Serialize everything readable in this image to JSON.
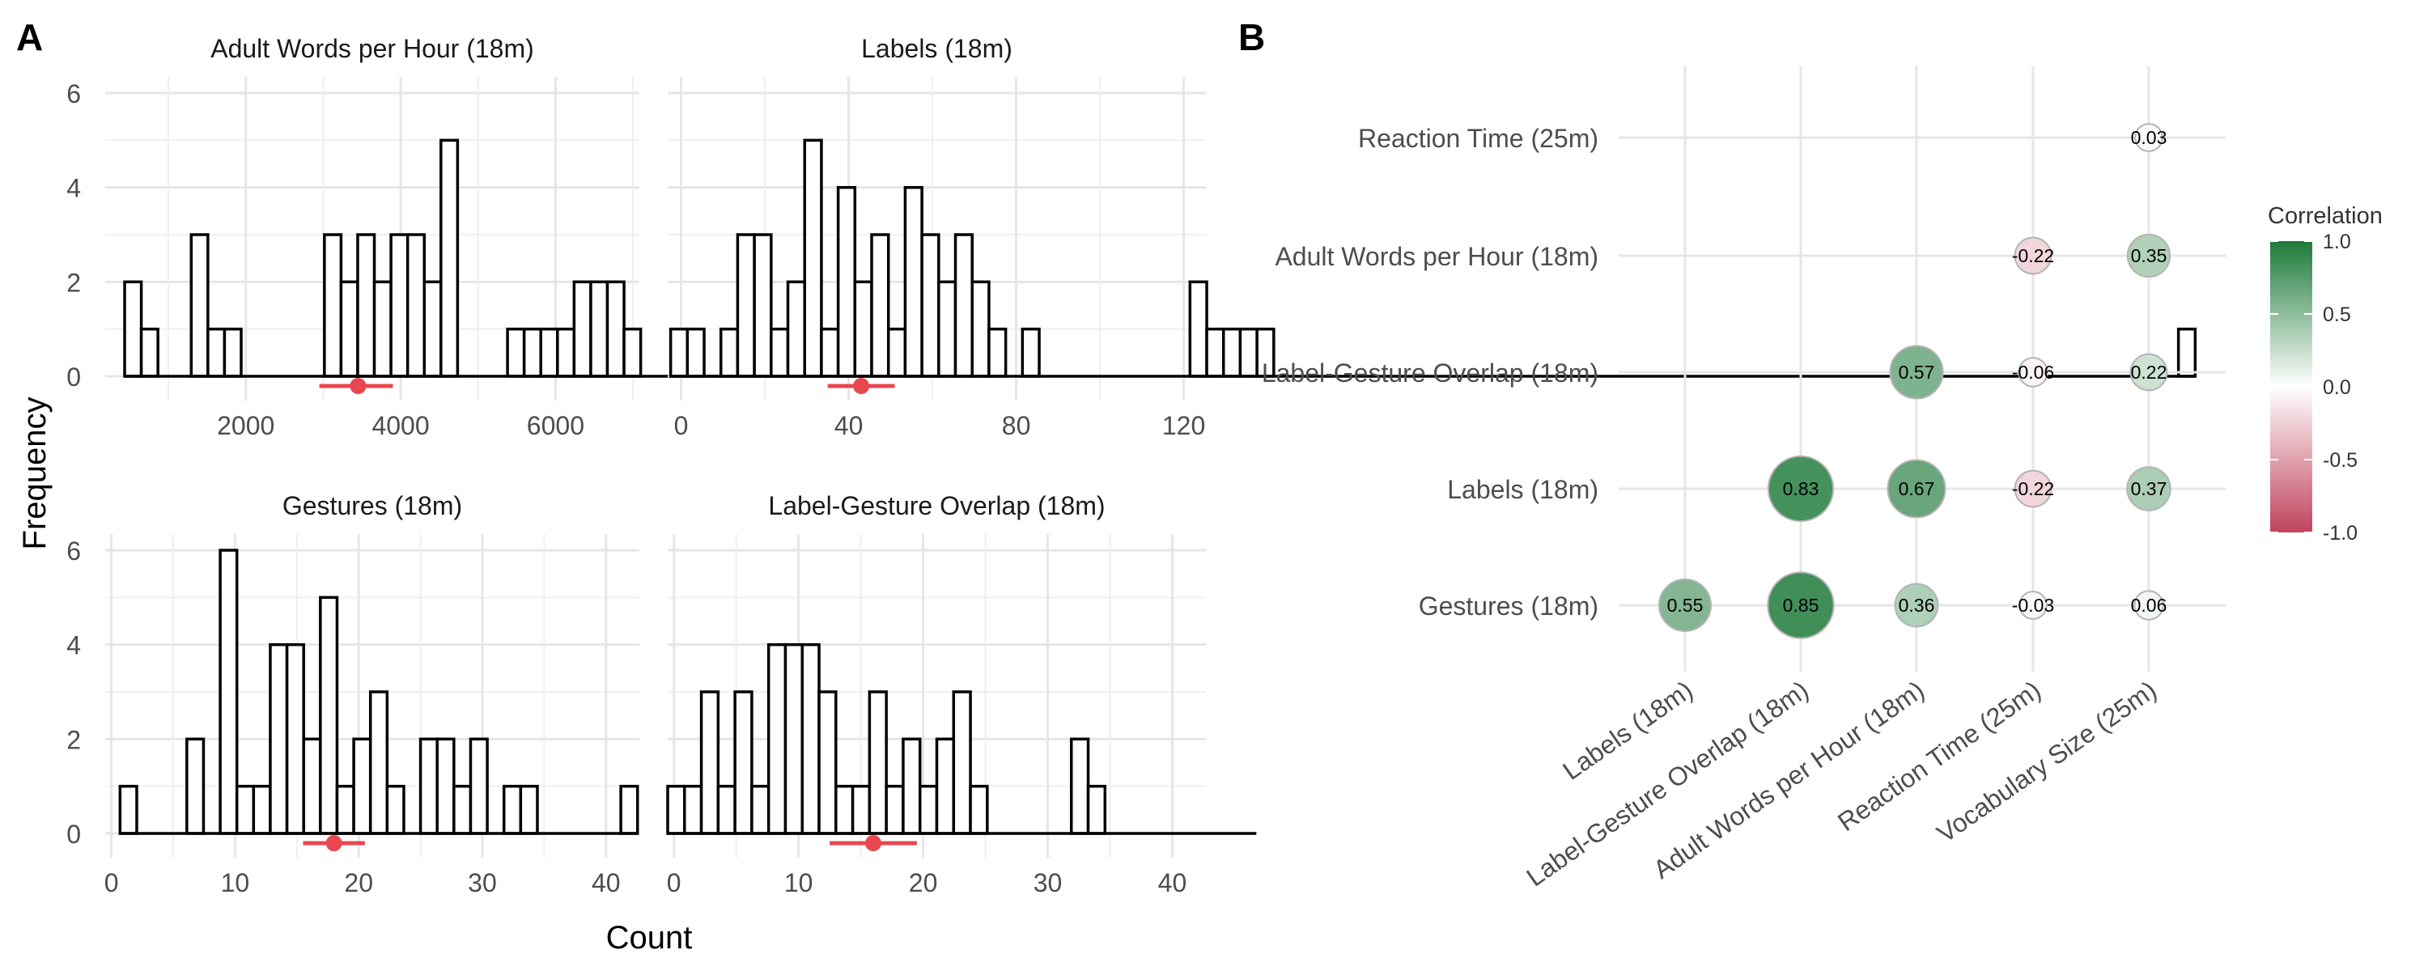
{
  "panels": {
    "a_label": "A",
    "b_label": "B"
  },
  "histograms": {
    "ylabel": "Frequency",
    "xlabel": "Count",
    "y_ticks": [
      0,
      2,
      4,
      6
    ],
    "ylim": [
      0,
      6
    ],
    "colors": {
      "bar_stroke": "#000000",
      "bar_fill": "#ffffff",
      "interval": "#e8474f",
      "grid": "#e6e6e6"
    }
  },
  "correlation": {
    "legend_title": "Correlation",
    "legend_ticks": [
      "1.0",
      "0.5",
      "0.0",
      "-0.5",
      "-1.0"
    ],
    "legend_range": [
      -1,
      1
    ],
    "colors": {
      "negative": "#c0435d",
      "neutral": "#ffffff",
      "positive": "#1f7a3a"
    }
  },
  "chart_data": [
    {
      "type": "bar",
      "title": "Adult Words per Hour (18m)",
      "xlim": [
        184,
        7083
      ],
      "x_ticks": [
        2000,
        4000,
        6000
      ],
      "bin_start": 435,
      "bin_width": 215,
      "values": [
        2,
        1,
        0,
        0,
        3,
        1,
        1,
        0,
        0,
        0,
        0,
        0,
        3,
        2,
        3,
        2,
        3,
        3,
        2,
        5,
        0,
        0,
        0,
        1,
        1,
        1,
        1,
        2,
        2,
        2,
        1,
        0,
        0,
        0,
        0,
        0,
        0,
        0,
        0,
        0,
        0,
        1
      ],
      "interval": {
        "mean": 3450,
        "low": 2950,
        "high": 3900
      }
    },
    {
      "type": "bar",
      "title": "Labels (18m)",
      "xlim": [
        -3.2,
        125.3
      ],
      "x_ticks": [
        0,
        40,
        80,
        120
      ],
      "bin_start": -2.5,
      "bin_width": 4,
      "values": [
        1,
        1,
        0,
        1,
        3,
        3,
        1,
        2,
        5,
        1,
        4,
        2,
        3,
        1,
        4,
        3,
        2,
        3,
        2,
        1,
        0,
        1,
        0,
        0,
        0,
        0,
        0,
        0,
        0,
        0,
        0,
        2,
        1,
        1,
        1,
        1,
        0,
        0,
        0,
        0,
        0,
        0,
        0,
        0,
        0,
        0,
        0,
        0,
        0,
        0,
        0,
        0,
        0,
        0,
        0,
        0,
        0,
        0,
        0,
        0,
        0,
        0,
        0,
        0,
        0,
        0,
        0,
        0,
        0,
        0,
        0,
        0,
        0,
        0,
        0,
        0,
        0,
        0,
        0,
        0,
        0,
        0,
        0,
        0,
        0,
        0,
        0,
        0,
        0,
        0,
        1
      ],
      "interval": {
        "mean": 43,
        "low": 35,
        "high": 51
      }
    },
    {
      "type": "bar",
      "title": "Gestures (18m)",
      "xlim": [
        -0.5,
        42.7
      ],
      "x_ticks": [
        0,
        10,
        20,
        30,
        40
      ],
      "bin_start": 0.7,
      "bin_width": 1.35,
      "values": [
        1,
        0,
        0,
        0,
        2,
        0,
        6,
        1,
        1,
        4,
        4,
        2,
        5,
        1,
        2,
        3,
        1,
        0,
        2,
        2,
        1,
        2,
        0,
        1,
        1,
        0,
        0,
        0,
        0,
        0,
        1
      ],
      "interval": {
        "mean": 18,
        "low": 15.5,
        "high": 20.5
      }
    },
    {
      "type": "bar",
      "title": "Label-Gesture Overlap (18m)",
      "xlim": [
        -0.5,
        42.7
      ],
      "x_ticks": [
        0,
        10,
        20,
        30,
        40
      ],
      "bin_start": -0.5,
      "bin_width": 1.35,
      "values": [
        1,
        1,
        3,
        1,
        3,
        1,
        4,
        4,
        4,
        3,
        1,
        1,
        3,
        1,
        2,
        1,
        2,
        3,
        1,
        0,
        0,
        0,
        0,
        0,
        2,
        1,
        0,
        0,
        0,
        0,
        0,
        0,
        0,
        0,
        0
      ],
      "interval": {
        "mean": 16,
        "low": 12.5,
        "high": 19.5
      }
    },
    {
      "type": "scatter",
      "title": "",
      "x_categories": [
        "Labels (18m)",
        "Label-Gesture Overlap (18m)",
        "Adult Words per Hour (18m)",
        "Reaction Time (25m)",
        "Vocabulary Size (25m)"
      ],
      "y_categories": [
        "Gestures (18m)",
        "Labels (18m)",
        "Label-Gesture Overlap (18m)",
        "Adult Words per Hour (18m)",
        "Reaction Time (25m)"
      ],
      "points": [
        {
          "x": "Labels (18m)",
          "y": "Gestures (18m)",
          "r": 0.55
        },
        {
          "x": "Label-Gesture Overlap (18m)",
          "y": "Gestures (18m)",
          "r": 0.85
        },
        {
          "x": "Adult Words per Hour (18m)",
          "y": "Gestures (18m)",
          "r": 0.36
        },
        {
          "x": "Reaction Time (25m)",
          "y": "Gestures (18m)",
          "r": -0.03
        },
        {
          "x": "Vocabulary Size (25m)",
          "y": "Gestures (18m)",
          "r": 0.06
        },
        {
          "x": "Label-Gesture Overlap (18m)",
          "y": "Labels (18m)",
          "r": 0.83
        },
        {
          "x": "Adult Words per Hour (18m)",
          "y": "Labels (18m)",
          "r": 0.67
        },
        {
          "x": "Reaction Time (25m)",
          "y": "Labels (18m)",
          "r": -0.22
        },
        {
          "x": "Vocabulary Size (25m)",
          "y": "Labels (18m)",
          "r": 0.37
        },
        {
          "x": "Adult Words per Hour (18m)",
          "y": "Label-Gesture Overlap (18m)",
          "r": 0.57
        },
        {
          "x": "Reaction Time (25m)",
          "y": "Label-Gesture Overlap (18m)",
          "r": -0.06
        },
        {
          "x": "Vocabulary Size (25m)",
          "y": "Label-Gesture Overlap (18m)",
          "r": 0.22
        },
        {
          "x": "Reaction Time (25m)",
          "y": "Adult Words per Hour (18m)",
          "r": -0.22
        },
        {
          "x": "Vocabulary Size (25m)",
          "y": "Adult Words per Hour (18m)",
          "r": 0.35
        },
        {
          "x": "Vocabulary Size (25m)",
          "y": "Reaction Time (25m)",
          "r": 0.03
        }
      ]
    }
  ]
}
